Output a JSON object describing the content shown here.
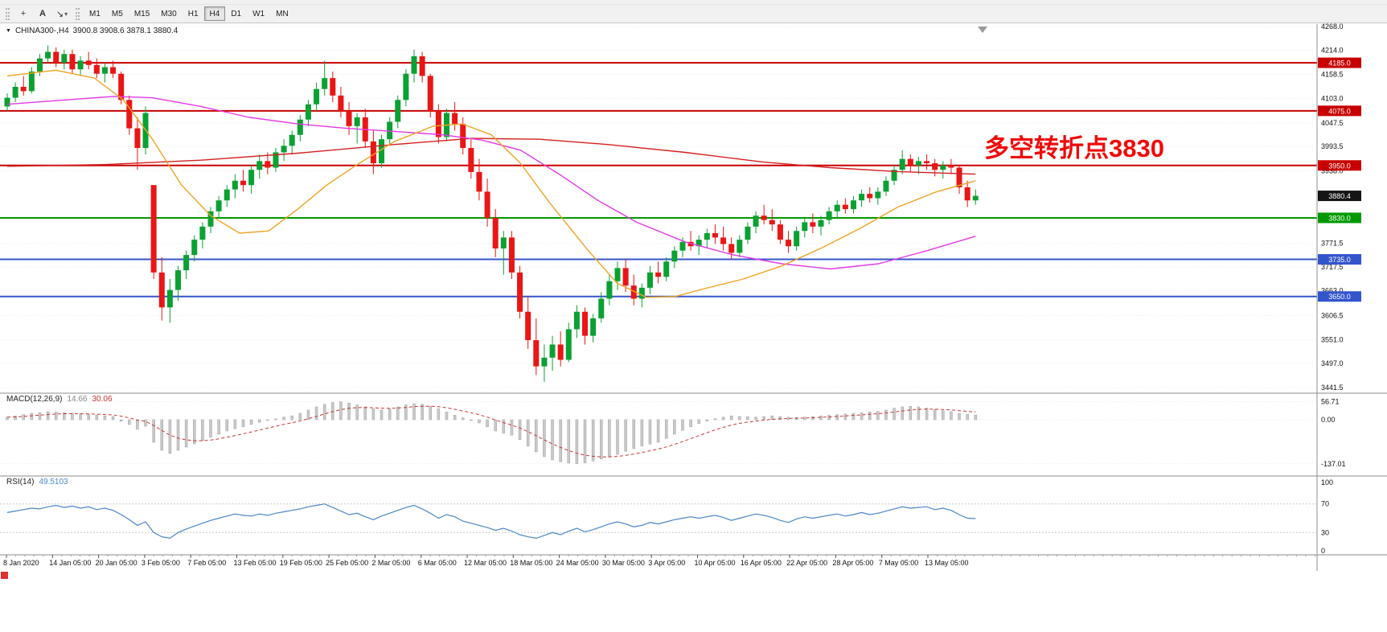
{
  "toolbar": {
    "tools": [
      {
        "name": "crosshair-tool",
        "glyph": "+"
      },
      {
        "name": "text-tool",
        "glyph": "A"
      },
      {
        "name": "arrow-tool",
        "glyph": "↘",
        "caret": "▾"
      }
    ],
    "timeframes": [
      "M1",
      "M5",
      "M15",
      "M30",
      "H1",
      "H4",
      "D1",
      "W1",
      "MN"
    ],
    "active_timeframe": "H4"
  },
  "chart_header": {
    "collapse_icon": "▼",
    "symbol_period": "CHINA300-,H4",
    "ohlc": "3900.8 3908.6 3878.1 3880.4"
  },
  "annotation": {
    "text": "多空转折点3830",
    "color": "#f00a0a"
  },
  "indicators": {
    "macd": {
      "name": "MACD(12,26,9)",
      "main_value": "14.66",
      "signal_value": "30.06",
      "axis_labels": [
        56.71,
        0.0,
        -137.01
      ]
    },
    "rsi": {
      "name": "RSI(14)",
      "value": "49.5103",
      "axis_labels": [
        100,
        70,
        30,
        0
      ],
      "levels": [
        70,
        30
      ]
    }
  },
  "chart_data": {
    "type": "candlestick",
    "title": "CHINA300-,H4",
    "price_axis": {
      "min": 3441.5,
      "max": 4268.0,
      "tick_labels": [
        4268.0,
        4214.0,
        4158.5,
        4103.0,
        4047.5,
        3993.5,
        3938.0,
        3771.5,
        3717.5,
        3663.0,
        3606.5,
        3551.0,
        3497.0,
        3441.5
      ]
    },
    "time_labels": [
      "8 Jan 2020",
      "14 Jan 05:00",
      "20 Jan 05:00",
      "3 Feb 05:00",
      "7 Feb 05:00",
      "13 Feb 05:00",
      "19 Feb 05:00",
      "25 Feb 05:00",
      "2 Mar 05:00",
      "6 Mar 05:00",
      "12 Mar 05:00",
      "18 Mar 05:00",
      "24 Mar 05:00",
      "30 Mar 05:00",
      "3 Apr 05:00",
      "10 Apr 05:00",
      "16 Apr 05:00",
      "22 Apr 05:00",
      "28 Apr 05:00",
      "7 May 05:00",
      "13 May 05:00"
    ],
    "hlines": [
      {
        "price": 4185.0,
        "label": "4185.0",
        "color": "#c80000"
      },
      {
        "price": 4075.0,
        "label": "4075.0",
        "color": "#c80000"
      },
      {
        "price": 3950.0,
        "label": "3950.0",
        "color": "#c80000"
      },
      {
        "price": 3830.0,
        "label": "3830.0",
        "color": "#009a00"
      },
      {
        "price": 3735.0,
        "label": "3735.0",
        "color": "#3355cc"
      },
      {
        "price": 3650.0,
        "label": "3650.0",
        "color": "#3355cc"
      }
    ],
    "current_price": {
      "value": 3880.4,
      "label": "3880.4",
      "badge_color": "#151515"
    },
    "colors": {
      "up": "#0aa132",
      "down": "#ea1515"
    },
    "candles": [
      [
        4085,
        4115,
        4075,
        4105
      ],
      [
        4105,
        4140,
        4095,
        4130
      ],
      [
        4130,
        4155,
        4110,
        4120
      ],
      [
        4120,
        4175,
        4115,
        4165
      ],
      [
        4165,
        4205,
        4155,
        4195
      ],
      [
        4195,
        4225,
        4185,
        4210
      ],
      [
        4210,
        4220,
        4175,
        4185
      ],
      [
        4185,
        4215,
        4170,
        4205
      ],
      [
        4205,
        4215,
        4160,
        4170
      ],
      [
        4170,
        4200,
        4155,
        4190
      ],
      [
        4190,
        4210,
        4170,
        4180
      ],
      [
        4180,
        4195,
        4150,
        4160
      ],
      [
        4160,
        4185,
        4140,
        4175
      ],
      [
        4175,
        4190,
        4150,
        4160
      ],
      [
        4160,
        4165,
        4090,
        4100
      ],
      [
        4100,
        4110,
        4020,
        4035
      ],
      [
        4035,
        4060,
        3940,
        3990
      ],
      [
        3990,
        4085,
        3975,
        4070
      ],
      [
        3905,
        3905,
        3690,
        3705
      ],
      [
        3705,
        3740,
        3595,
        3625
      ],
      [
        3625,
        3690,
        3590,
        3665
      ],
      [
        3665,
        3720,
        3640,
        3710
      ],
      [
        3710,
        3755,
        3690,
        3745
      ],
      [
        3745,
        3790,
        3730,
        3780
      ],
      [
        3780,
        3820,
        3760,
        3810
      ],
      [
        3810,
        3855,
        3795,
        3845
      ],
      [
        3845,
        3880,
        3830,
        3870
      ],
      [
        3870,
        3905,
        3855,
        3895
      ],
      [
        3895,
        3930,
        3875,
        3915
      ],
      [
        3915,
        3940,
        3890,
        3905
      ],
      [
        3905,
        3950,
        3885,
        3940
      ],
      [
        3940,
        3975,
        3920,
        3960
      ],
      [
        3960,
        3980,
        3930,
        3945
      ],
      [
        3945,
        3990,
        3935,
        3980
      ],
      [
        3980,
        4010,
        3960,
        3995
      ],
      [
        3995,
        4030,
        3975,
        4020
      ],
      [
        4020,
        4065,
        4005,
        4055
      ],
      [
        4055,
        4100,
        4040,
        4090
      ],
      [
        4090,
        4140,
        4075,
        4125
      ],
      [
        4125,
        4190,
        4110,
        4150
      ],
      [
        4150,
        4165,
        4095,
        4110
      ],
      [
        4110,
        4130,
        4060,
        4075
      ],
      [
        4075,
        4095,
        4020,
        4040
      ],
      [
        4040,
        4070,
        4000,
        4060
      ],
      [
        4060,
        4080,
        3990,
        4005
      ],
      [
        4005,
        4030,
        3930,
        3955
      ],
      [
        3955,
        4020,
        3945,
        4010
      ],
      [
        4010,
        4060,
        3995,
        4050
      ],
      [
        4050,
        4110,
        4035,
        4100
      ],
      [
        4100,
        4170,
        4085,
        4160
      ],
      [
        4160,
        4215,
        4140,
        4200
      ],
      [
        4200,
        4210,
        4140,
        4155
      ],
      [
        4155,
        4160,
        4060,
        4075
      ],
      [
        4075,
        4090,
        4000,
        4015
      ],
      [
        4015,
        4080,
        4005,
        4070
      ],
      [
        4070,
        4095,
        4030,
        4045
      ],
      [
        4045,
        4060,
        3975,
        3990
      ],
      [
        3990,
        4010,
        3920,
        3935
      ],
      [
        3935,
        3965,
        3870,
        3890
      ],
      [
        3890,
        3920,
        3810,
        3830
      ],
      [
        3830,
        3850,
        3740,
        3760
      ],
      [
        3760,
        3800,
        3700,
        3785
      ],
      [
        3785,
        3800,
        3690,
        3705
      ],
      [
        3705,
        3720,
        3600,
        3615
      ],
      [
        3615,
        3650,
        3530,
        3550
      ],
      [
        3550,
        3600,
        3470,
        3490
      ],
      [
        3490,
        3540,
        3455,
        3510
      ],
      [
        3510,
        3560,
        3480,
        3540
      ],
      [
        3540,
        3570,
        3490,
        3505
      ],
      [
        3505,
        3590,
        3500,
        3575
      ],
      [
        3575,
        3630,
        3555,
        3615
      ],
      [
        3615,
        3625,
        3540,
        3560
      ],
      [
        3560,
        3610,
        3545,
        3600
      ],
      [
        3600,
        3660,
        3590,
        3645
      ],
      [
        3645,
        3700,
        3630,
        3685
      ],
      [
        3685,
        3730,
        3665,
        3715
      ],
      [
        3715,
        3735,
        3660,
        3675
      ],
      [
        3675,
        3700,
        3630,
        3645
      ],
      [
        3645,
        3680,
        3625,
        3670
      ],
      [
        3670,
        3720,
        3655,
        3705
      ],
      [
        3705,
        3730,
        3680,
        3695
      ],
      [
        3695,
        3740,
        3685,
        3730
      ],
      [
        3730,
        3765,
        3715,
        3755
      ],
      [
        3755,
        3785,
        3740,
        3775
      ],
      [
        3775,
        3800,
        3755,
        3765
      ],
      [
        3765,
        3790,
        3745,
        3780
      ],
      [
        3780,
        3805,
        3760,
        3795
      ],
      [
        3795,
        3815,
        3770,
        3785
      ],
      [
        3785,
        3810,
        3755,
        3770
      ],
      [
        3770,
        3785,
        3735,
        3750
      ],
      [
        3750,
        3790,
        3740,
        3780
      ],
      [
        3780,
        3820,
        3770,
        3810
      ],
      [
        3810,
        3845,
        3795,
        3835
      ],
      [
        3835,
        3860,
        3815,
        3825
      ],
      [
        3825,
        3850,
        3800,
        3815
      ],
      [
        3815,
        3825,
        3770,
        3780
      ],
      [
        3780,
        3800,
        3750,
        3765
      ],
      [
        3765,
        3810,
        3755,
        3800
      ],
      [
        3800,
        3830,
        3785,
        3820
      ],
      [
        3820,
        3840,
        3795,
        3810
      ],
      [
        3810,
        3835,
        3790,
        3825
      ],
      [
        3825,
        3855,
        3815,
        3845
      ],
      [
        3845,
        3870,
        3830,
        3860
      ],
      [
        3860,
        3875,
        3840,
        3850
      ],
      [
        3850,
        3880,
        3840,
        3870
      ],
      [
        3870,
        3895,
        3855,
        3885
      ],
      [
        3885,
        3900,
        3865,
        3875
      ],
      [
        3875,
        3900,
        3860,
        3890
      ],
      [
        3890,
        3925,
        3880,
        3915
      ],
      [
        3915,
        3950,
        3905,
        3940
      ],
      [
        3940,
        3985,
        3930,
        3965
      ],
      [
        3965,
        3975,
        3935,
        3950
      ],
      [
        3950,
        3970,
        3930,
        3960
      ],
      [
        3960,
        3975,
        3940,
        3955
      ],
      [
        3955,
        3965,
        3925,
        3940
      ],
      [
        3940,
        3960,
        3920,
        3950
      ],
      [
        3950,
        3965,
        3930,
        3945
      ],
      [
        3945,
        3950,
        3885,
        3900
      ],
      [
        3900,
        3915,
        3855,
        3870
      ],
      [
        3870,
        3895,
        3860,
        3880.4
      ]
    ],
    "moving_averages": [
      {
        "name": "ma-slow-red",
        "color": "#d42020",
        "points": [
          [
            0,
            3948
          ],
          [
            0.1,
            3952
          ],
          [
            0.2,
            3962
          ],
          [
            0.3,
            3978
          ],
          [
            0.4,
            3998
          ],
          [
            0.48,
            4012
          ],
          [
            0.55,
            4010
          ],
          [
            0.62,
            3998
          ],
          [
            0.7,
            3980
          ],
          [
            0.78,
            3958
          ],
          [
            0.85,
            3945
          ],
          [
            0.92,
            3936
          ],
          [
            1,
            3930
          ]
        ]
      },
      {
        "name": "ma-long-magenta",
        "color": "#e23ae2",
        "points": [
          [
            0,
            4090
          ],
          [
            0.06,
            4100
          ],
          [
            0.11,
            4108
          ],
          [
            0.15,
            4105
          ],
          [
            0.2,
            4085
          ],
          [
            0.25,
            4060
          ],
          [
            0.3,
            4045
          ],
          [
            0.35,
            4035
          ],
          [
            0.4,
            4028
          ],
          [
            0.45,
            4020
          ],
          [
            0.49,
            4008
          ],
          [
            0.53,
            3985
          ],
          [
            0.57,
            3930
          ],
          [
            0.61,
            3870
          ],
          [
            0.65,
            3820
          ],
          [
            0.7,
            3775
          ],
          [
            0.75,
            3745
          ],
          [
            0.8,
            3725
          ],
          [
            0.85,
            3713
          ],
          [
            0.9,
            3725
          ],
          [
            0.95,
            3755
          ],
          [
            1,
            3788
          ]
        ]
      },
      {
        "name": "ma-mid-orange",
        "color": "#efa322",
        "points": [
          [
            0,
            4155
          ],
          [
            0.05,
            4168
          ],
          [
            0.09,
            4150
          ],
          [
            0.12,
            4100
          ],
          [
            0.15,
            4010
          ],
          [
            0.18,
            3905
          ],
          [
            0.21,
            3835
          ],
          [
            0.24,
            3795
          ],
          [
            0.27,
            3800
          ],
          [
            0.3,
            3850
          ],
          [
            0.33,
            3905
          ],
          [
            0.36,
            3950
          ],
          [
            0.4,
            4005
          ],
          [
            0.44,
            4040
          ],
          [
            0.47,
            4045
          ],
          [
            0.5,
            4020
          ],
          [
            0.53,
            3955
          ],
          [
            0.56,
            3865
          ],
          [
            0.6,
            3755
          ],
          [
            0.63,
            3680
          ],
          [
            0.66,
            3648
          ],
          [
            0.69,
            3650
          ],
          [
            0.72,
            3668
          ],
          [
            0.76,
            3690
          ],
          [
            0.8,
            3720
          ],
          [
            0.84,
            3760
          ],
          [
            0.88,
            3805
          ],
          [
            0.92,
            3855
          ],
          [
            0.96,
            3890
          ],
          [
            1,
            3915
          ]
        ]
      }
    ],
    "macd_histogram": [
      8,
      12,
      16,
      20,
      22,
      25,
      24,
      22,
      20,
      18,
      16,
      14,
      12,
      10,
      -5,
      -15,
      -30,
      -20,
      -70,
      -95,
      -105,
      -95,
      -85,
      -75,
      -65,
      -55,
      -45,
      -35,
      -28,
      -22,
      -15,
      -8,
      -2,
      3,
      8,
      12,
      20,
      30,
      40,
      48,
      54,
      56,
      52,
      46,
      40,
      34,
      30,
      34,
      40,
      46,
      50,
      48,
      42,
      34,
      24,
      14,
      6,
      0,
      -10,
      -22,
      -35,
      -42,
      -48,
      -62,
      -82,
      -100,
      -115,
      -125,
      -131,
      -135,
      -137,
      -134,
      -128,
      -122,
      -116,
      -108,
      -98,
      -90,
      -82,
      -76,
      -70,
      -58,
      -45,
      -33,
      -22,
      -12,
      -4,
      3,
      8,
      12,
      10,
      9,
      8,
      10,
      12,
      10,
      8,
      7,
      8,
      10,
      12,
      14,
      16,
      18,
      20,
      22,
      24,
      26,
      30,
      36,
      40,
      42,
      40,
      36,
      32,
      28,
      25,
      20,
      17,
      14.66
    ],
    "rsi_values": [
      58,
      60,
      62,
      64,
      63,
      66,
      68,
      65,
      67,
      64,
      66,
      62,
      64,
      61,
      55,
      48,
      40,
      45,
      30,
      24,
      22,
      30,
      35,
      39,
      43,
      47,
      50,
      53,
      56,
      54,
      53,
      56,
      54,
      57,
      59,
      61,
      63,
      66,
      68,
      70,
      65,
      60,
      55,
      57,
      52,
      48,
      53,
      57,
      61,
      65,
      68,
      63,
      57,
      50,
      55,
      52,
      46,
      43,
      40,
      37,
      33,
      36,
      32,
      27,
      24,
      22,
      26,
      30,
      27,
      32,
      36,
      31,
      34,
      38,
      42,
      45,
      42,
      38,
      40,
      44,
      42,
      45,
      48,
      50,
      52,
      50,
      52,
      54,
      51,
      47,
      50,
      53,
      56,
      54,
      51,
      47,
      44,
      49,
      52,
      50,
      52,
      54,
      56,
      53,
      55,
      58,
      55,
      57,
      60,
      63,
      66,
      64,
      65,
      66,
      62,
      64,
      61,
      55,
      50,
      49.51
    ]
  }
}
